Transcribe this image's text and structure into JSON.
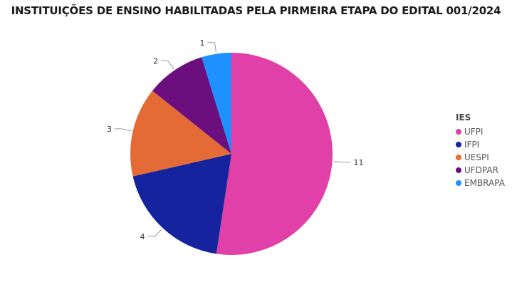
{
  "chart_data": {
    "type": "pie",
    "title": "INSTITUIÇÕES DE ENSINO HABILITADAS PELA PIRMEIRA ETAPA DO EDITAL 001/2024",
    "legend_title": "IES",
    "legend_position": "right",
    "slices": [
      {
        "name": "UFPI",
        "value": 11,
        "color": "#e040a8"
      },
      {
        "name": "IFPI",
        "value": 4,
        "color": "#16239e"
      },
      {
        "name": "UESPI",
        "value": 3,
        "color": "#e46b35"
      },
      {
        "name": "UFDPAR",
        "value": 2,
        "color": "#6b0f7e"
      },
      {
        "name": "EMBRAPA",
        "value": 1,
        "color": "#1e90ff"
      }
    ]
  }
}
